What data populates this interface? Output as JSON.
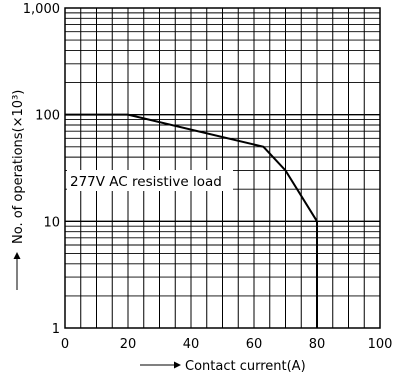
{
  "chart_data": {
    "type": "line",
    "xlabel": "Contact current(A)",
    "ylabel": "No. of operations(×10³)",
    "xlim": [
      0,
      100
    ],
    "ylim": [
      1,
      1000
    ],
    "y_scale": "log",
    "grid": true,
    "x_ticks": [
      "0",
      "20",
      "40",
      "60",
      "80",
      "100"
    ],
    "y_ticks": [
      "1",
      "10",
      "100",
      "1,000"
    ],
    "annotation": "277V AC resistive load",
    "series": [
      {
        "x": [
          0,
          20,
          63,
          70,
          80,
          80
        ],
        "y": [
          100,
          100,
          50,
          30,
          10,
          1
        ]
      }
    ]
  }
}
